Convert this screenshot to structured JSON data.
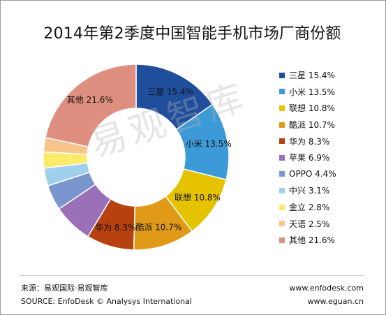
{
  "title": "2014年第2季度中国智能手机市场厂商份额",
  "watermark": "易观智库",
  "chart_data": {
    "type": "pie",
    "donut": true,
    "title": "2014年第2季度中国智能手机市场厂商份额",
    "legend_position": "right",
    "slices": [
      {
        "label": "三星",
        "value": 15.4,
        "text": "15.4%",
        "color": "#1f4e9c"
      },
      {
        "label": "小米",
        "value": 13.5,
        "text": "13.5%",
        "color": "#3d9ad8"
      },
      {
        "label": "联想",
        "value": 10.8,
        "text": "10.8%",
        "color": "#e6c300"
      },
      {
        "label": "酷派",
        "value": 10.7,
        "text": "10.7%",
        "color": "#e09a18"
      },
      {
        "label": "华为",
        "value": 8.3,
        "text": "8.3%",
        "color": "#b7410f"
      },
      {
        "label": "苹果",
        "value": 6.9,
        "text": "6.9%",
        "color": "#9a70b8"
      },
      {
        "label": "OPPO",
        "value": 4.4,
        "text": "4.4%",
        "color": "#7b96cf"
      },
      {
        "label": "中兴",
        "value": 3.1,
        "text": "3.1%",
        "color": "#9fd0f0"
      },
      {
        "label": "金立",
        "value": 2.8,
        "text": "2.8%",
        "color": "#fbeb6a"
      },
      {
        "label": "天语",
        "value": 2.5,
        "text": "2.5%",
        "color": "#f7c58a"
      },
      {
        "label": "其他",
        "value": 21.6,
        "text": "21.6%",
        "color": "#df8f80"
      }
    ],
    "labeled_slices": [
      0,
      1,
      2,
      3,
      4,
      10
    ]
  },
  "footer": {
    "source_cn": "来源：易观国际·易观智库",
    "source_en": "SOURCE: EnfoDesk © Analysys International",
    "url1": "www.enfodesk.com",
    "url2": "www.eguan.cn"
  }
}
